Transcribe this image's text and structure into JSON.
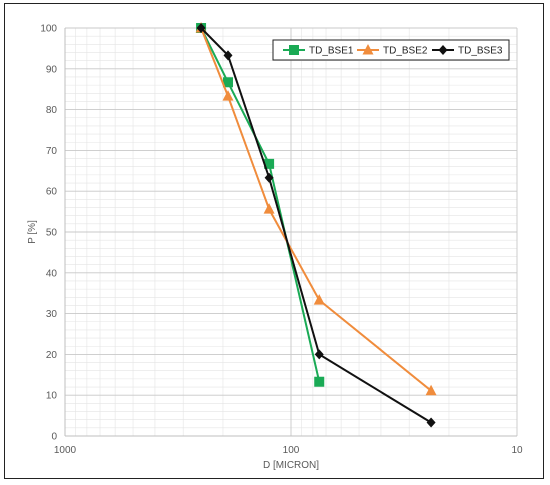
{
  "chart_data": {
    "type": "line",
    "xlabel": "D [MICRON]",
    "ylabel": "P [%]",
    "x_scale": "log",
    "x_reversed": true,
    "xlim": [
      1000,
      10
    ],
    "ylim": [
      0,
      100
    ],
    "x_ticks": [
      "1000",
      "100",
      "10"
    ],
    "y_ticks": [
      "0",
      "10",
      "20",
      "30",
      "40",
      "50",
      "60",
      "70",
      "80",
      "90",
      "100"
    ],
    "grid": true,
    "legend_position": "top-right",
    "series": [
      {
        "name": "TD_BSE1",
        "color": "#1aaa55",
        "marker": "square",
        "x": [
          250,
          190,
          125,
          75
        ],
        "y": [
          100,
          86.7,
          66.7,
          13.3
        ]
      },
      {
        "name": "TD_BSE2",
        "color": "#f08c3c",
        "marker": "triangle",
        "x": [
          250,
          190,
          125,
          75,
          24
        ],
        "y": [
          100,
          83.3,
          55.6,
          33.3,
          11.1
        ]
      },
      {
        "name": "TD_BSE3",
        "color": "#111111",
        "marker": "diamond",
        "x": [
          250,
          190,
          125,
          75,
          24
        ],
        "y": [
          100,
          93.3,
          63.3,
          20,
          3.3
        ]
      }
    ]
  }
}
